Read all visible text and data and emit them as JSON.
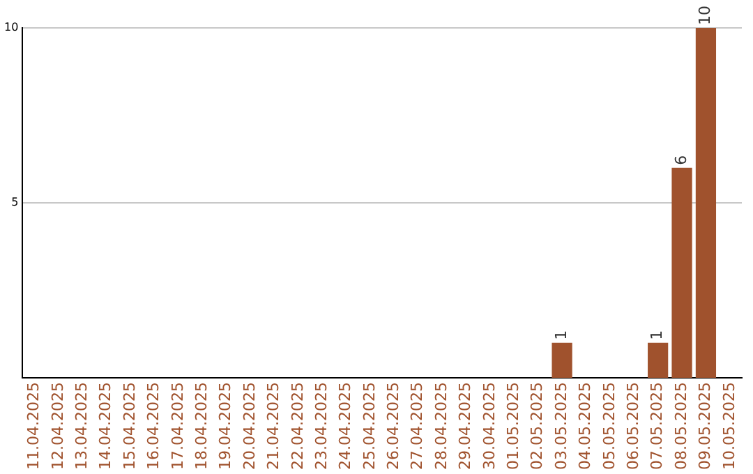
{
  "chart_data": {
    "type": "bar",
    "categories": [
      "11.04.2025",
      "12.04.2025",
      "13.04.2025",
      "14.04.2025",
      "15.04.2025",
      "16.04.2025",
      "17.04.2025",
      "18.04.2025",
      "19.04.2025",
      "20.04.2025",
      "21.04.2025",
      "22.04.2025",
      "23.04.2025",
      "24.04.2025",
      "25.04.2025",
      "26.04.2025",
      "27.04.2025",
      "28.04.2025",
      "29.04.2025",
      "30.04.2025",
      "01.05.2025",
      "02.05.2025",
      "03.05.2025",
      "04.05.2025",
      "05.05.2025",
      "06.05.2025",
      "07.05.2025",
      "08.05.2025",
      "09.05.2025",
      "10.05.2025"
    ],
    "values": [
      0,
      0,
      0,
      0,
      0,
      0,
      0,
      0,
      0,
      0,
      0,
      0,
      0,
      0,
      0,
      0,
      0,
      0,
      0,
      0,
      0,
      0,
      1,
      0,
      0,
      0,
      1,
      6,
      10,
      0
    ],
    "value_labels": [
      null,
      null,
      null,
      null,
      null,
      null,
      null,
      null,
      null,
      null,
      null,
      null,
      null,
      null,
      null,
      null,
      null,
      null,
      null,
      null,
      null,
      null,
      "1",
      null,
      null,
      null,
      "1",
      "6",
      "10",
      null
    ],
    "color": "#a0522d",
    "ylim": [
      0,
      10
    ],
    "yticks": [
      5,
      10
    ],
    "grid": "y",
    "legend": false
  }
}
